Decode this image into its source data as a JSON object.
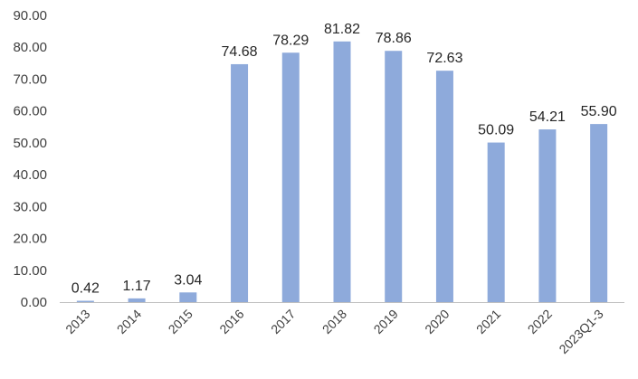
{
  "chart_data": {
    "type": "bar",
    "categories": [
      "2013",
      "2014",
      "2015",
      "2016",
      "2017",
      "2018",
      "2019",
      "2020",
      "2021",
      "2022",
      "2023Q1-3"
    ],
    "values": [
      0.42,
      1.17,
      3.04,
      74.68,
      78.29,
      81.82,
      78.86,
      72.63,
      50.09,
      54.21,
      55.9
    ],
    "data_labels": [
      "0.42",
      "1.17",
      "3.04",
      "74.68",
      "78.29",
      "81.82",
      "78.86",
      "72.63",
      "50.09",
      "54.21",
      "55.90"
    ],
    "y_tick_labels": [
      "0.00",
      "10.00",
      "20.00",
      "30.00",
      "40.00",
      "50.00",
      "60.00",
      "70.00",
      "80.00",
      "90.00"
    ],
    "ylim": [
      0,
      90
    ],
    "title": "",
    "xlabel": "",
    "ylabel": "",
    "grid": false,
    "legend": "none",
    "bar_color": "#8EAADB",
    "axis_color": "#BFBFBF"
  }
}
